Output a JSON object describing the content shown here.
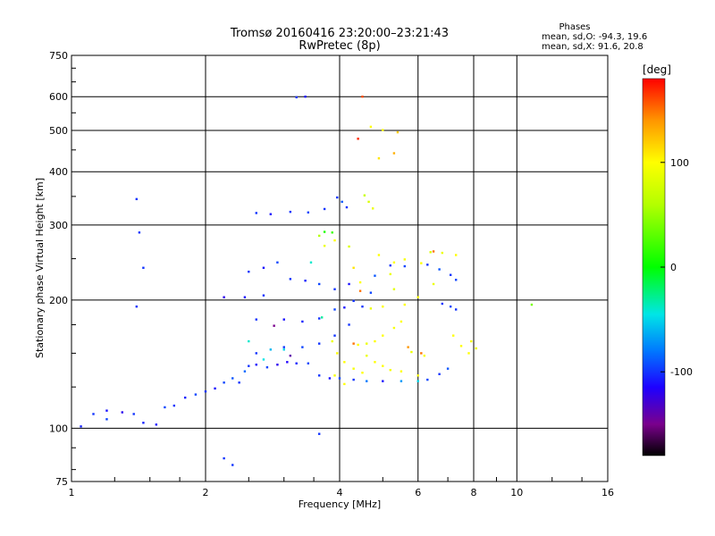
{
  "chart_data": {
    "type": "scatter",
    "title": "Tromsø 20160416 23:20:00–23:21:43",
    "subtitle": "RwPretec (8p)",
    "xlabel": "Frequency [MHz]",
    "ylabel": "Stationary phase Virtual Height [km]",
    "x_scale": "log",
    "y_scale": "log",
    "xlim": [
      1,
      16
    ],
    "ylim": [
      75,
      750
    ],
    "x_ticks": [
      1,
      2,
      4,
      6,
      8,
      10,
      16
    ],
    "y_ticks": [
      75,
      100,
      200,
      300,
      400,
      500,
      600,
      750
    ],
    "grid": true,
    "stats": {
      "title": "Phases",
      "line_o": "mean, sd,O: -94.3, 19.6",
      "line_x": "mean, sd,X:  91.6, 20.8"
    },
    "colorbar": {
      "label": "[deg]",
      "ticks": [
        100,
        0,
        -100
      ],
      "range": [
        -180,
        180
      ],
      "stops": [
        {
          "value": -180,
          "color": "#000000"
        },
        {
          "value": -150,
          "color": "#7a008c"
        },
        {
          "value": -115,
          "color": "#1e00ff"
        },
        {
          "value": -80,
          "color": "#0078ff"
        },
        {
          "value": -45,
          "color": "#00e6e6"
        },
        {
          "value": 0,
          "color": "#00ff00"
        },
        {
          "value": 60,
          "color": "#b4ff00"
        },
        {
          "value": 100,
          "color": "#ffff00"
        },
        {
          "value": 140,
          "color": "#ff9600"
        },
        {
          "value": 180,
          "color": "#ff0000"
        }
      ]
    },
    "series": [
      {
        "points": [
          [
            1.05,
            101,
            -105
          ],
          [
            1.12,
            108,
            -100
          ],
          [
            1.2,
            110,
            -110
          ],
          [
            1.3,
            109,
            -120
          ],
          [
            1.38,
            108,
            -100
          ],
          [
            1.45,
            103,
            -105
          ],
          [
            1.55,
            102,
            -110
          ],
          [
            1.62,
            112,
            -95
          ],
          [
            1.7,
            113,
            -100
          ],
          [
            1.8,
            118,
            -105
          ],
          [
            1.9,
            120,
            -95
          ],
          [
            2.0,
            122,
            -100
          ],
          [
            2.1,
            124,
            -110
          ],
          [
            2.2,
            128,
            -95
          ],
          [
            2.3,
            131,
            -90
          ],
          [
            2.38,
            128,
            -100
          ],
          [
            2.45,
            136,
            -85
          ],
          [
            2.5,
            140,
            -100
          ],
          [
            2.6,
            141,
            -110
          ],
          [
            2.75,
            139,
            -95
          ],
          [
            2.9,
            141,
            -120
          ],
          [
            3.05,
            143,
            -115
          ],
          [
            3.2,
            142,
            -105
          ],
          [
            3.4,
            142,
            -95
          ],
          [
            3.6,
            133,
            -100
          ],
          [
            3.8,
            131,
            -110
          ],
          [
            4.0,
            131,
            -95
          ],
          [
            4.3,
            130,
            -100
          ],
          [
            4.6,
            129,
            -80
          ],
          [
            5.0,
            129,
            -110
          ],
          [
            5.5,
            129,
            -70
          ],
          [
            6.0,
            129,
            -50
          ],
          [
            6.3,
            130,
            -95
          ],
          [
            6.7,
            134,
            -100
          ],
          [
            7.0,
            138,
            -90
          ],
          [
            2.6,
            150,
            -100
          ],
          [
            2.8,
            153,
            -60
          ],
          [
            3.0,
            155,
            -100
          ],
          [
            3.3,
            155,
            -95
          ],
          [
            3.6,
            158,
            -100
          ],
          [
            3.9,
            165,
            -100
          ],
          [
            4.2,
            175,
            -100
          ],
          [
            4.5,
            193,
            -100
          ],
          [
            4.7,
            208,
            -95
          ],
          [
            4.8,
            228,
            -90
          ],
          [
            4.3,
            199,
            -100
          ],
          [
            4.1,
            192,
            -110
          ],
          [
            3.9,
            190,
            -95
          ],
          [
            2.6,
            180,
            -100
          ],
          [
            3.0,
            180,
            -110
          ],
          [
            3.3,
            178,
            -105
          ],
          [
            3.6,
            181,
            -100
          ],
          [
            2.2,
            203,
            -120
          ],
          [
            2.45,
            203,
            -110
          ],
          [
            2.7,
            205,
            -100
          ],
          [
            2.5,
            233,
            -100
          ],
          [
            2.7,
            238,
            -110
          ],
          [
            2.9,
            245,
            -95
          ],
          [
            3.1,
            224,
            -100
          ],
          [
            3.35,
            222,
            -105
          ],
          [
            3.6,
            218,
            -95
          ],
          [
            3.9,
            212,
            -100
          ],
          [
            4.2,
            218,
            -110
          ],
          [
            5.2,
            241,
            -100
          ],
          [
            5.6,
            240,
            -95
          ],
          [
            6.3,
            242,
            -100
          ],
          [
            6.7,
            236,
            -90
          ],
          [
            7.1,
            229,
            -100
          ],
          [
            7.3,
            223,
            -95
          ],
          [
            6.8,
            196,
            -100
          ],
          [
            7.1,
            193,
            -95
          ],
          [
            7.3,
            190,
            -100
          ],
          [
            2.6,
            320,
            -100
          ],
          [
            2.8,
            318,
            -110
          ],
          [
            3.1,
            322,
            -100
          ],
          [
            3.4,
            321,
            -95
          ],
          [
            3.7,
            327,
            -100
          ],
          [
            3.95,
            348,
            -100
          ],
          [
            4.05,
            340,
            -90
          ],
          [
            4.15,
            330,
            -100
          ],
          [
            3.2,
            598,
            -100
          ],
          [
            3.35,
            600,
            -110
          ],
          [
            1.4,
            345,
            -100
          ],
          [
            1.42,
            288,
            -100
          ],
          [
            1.45,
            238,
            -100
          ],
          [
            1.4,
            193,
            -100
          ],
          [
            2.2,
            85,
            -100
          ],
          [
            2.3,
            82,
            -100
          ],
          [
            3.6,
            97,
            -100
          ],
          [
            1.2,
            105,
            -95
          ]
        ]
      },
      {
        "points": [
          [
            3.85,
            160,
            90
          ],
          [
            3.95,
            150,
            100
          ],
          [
            4.1,
            143,
            100
          ],
          [
            4.3,
            138,
            95
          ],
          [
            4.5,
            135,
            100
          ],
          [
            4.6,
            148,
            90
          ],
          [
            4.8,
            143,
            100
          ],
          [
            5.0,
            140,
            100
          ],
          [
            5.2,
            137,
            95
          ],
          [
            5.5,
            136,
            100
          ],
          [
            4.8,
            160,
            100
          ],
          [
            4.6,
            158,
            90
          ],
          [
            4.4,
            157,
            100
          ],
          [
            5.0,
            165,
            100
          ],
          [
            5.3,
            172,
            95
          ],
          [
            5.5,
            178,
            100
          ],
          [
            5.0,
            193,
            100
          ],
          [
            4.7,
            191,
            90
          ],
          [
            5.6,
            195,
            100
          ],
          [
            6.0,
            203,
            100
          ],
          [
            5.3,
            212,
            85
          ],
          [
            5.2,
            230,
            90
          ],
          [
            4.9,
            255,
            100
          ],
          [
            5.3,
            245,
            100
          ],
          [
            5.6,
            249,
            95
          ],
          [
            6.1,
            244,
            100
          ],
          [
            6.4,
            259,
            80
          ],
          [
            6.8,
            258,
            90
          ],
          [
            7.3,
            255,
            100
          ],
          [
            6.5,
            218,
            90
          ],
          [
            7.2,
            165,
            100
          ],
          [
            7.5,
            156,
            100
          ],
          [
            7.9,
            160,
            95
          ],
          [
            8.1,
            154,
            90
          ],
          [
            7.8,
            150,
            100
          ],
          [
            4.3,
            238,
            110
          ],
          [
            4.45,
            220,
            100
          ],
          [
            4.2,
            267,
            80
          ],
          [
            4.55,
            352,
            70
          ],
          [
            4.65,
            340,
            80
          ],
          [
            4.75,
            328,
            90
          ],
          [
            3.6,
            283,
            60
          ],
          [
            3.7,
            268,
            90
          ],
          [
            3.9,
            276,
            100
          ],
          [
            5.0,
            501,
            100
          ],
          [
            4.7,
            510,
            100
          ],
          [
            4.9,
            430,
            110
          ],
          [
            5.4,
            495,
            120
          ],
          [
            5.3,
            442,
            130
          ],
          [
            6.0,
            133,
            100
          ],
          [
            6.2,
            148,
            95
          ],
          [
            5.8,
            151,
            90
          ],
          [
            4.1,
            127,
            100
          ],
          [
            3.9,
            133,
            95
          ],
          [
            10.8,
            195,
            40
          ]
        ]
      },
      {
        "points": [
          [
            3.45,
            245,
            -40
          ],
          [
            2.7,
            145,
            -45
          ],
          [
            3.0,
            153,
            -50
          ],
          [
            2.5,
            160,
            -40
          ],
          [
            3.65,
            182,
            -30
          ],
          [
            4.3,
            158,
            150
          ],
          [
            4.45,
            210,
            150
          ],
          [
            4.5,
            600,
            160
          ],
          [
            4.4,
            478,
            170
          ],
          [
            6.1,
            150,
            150
          ],
          [
            5.7,
            155,
            140
          ],
          [
            6.5,
            260,
            150
          ],
          [
            3.7,
            289,
            10
          ],
          [
            3.85,
            288,
            20
          ],
          [
            2.85,
            174,
            -150
          ],
          [
            3.1,
            148,
            -140
          ]
        ]
      }
    ]
  }
}
